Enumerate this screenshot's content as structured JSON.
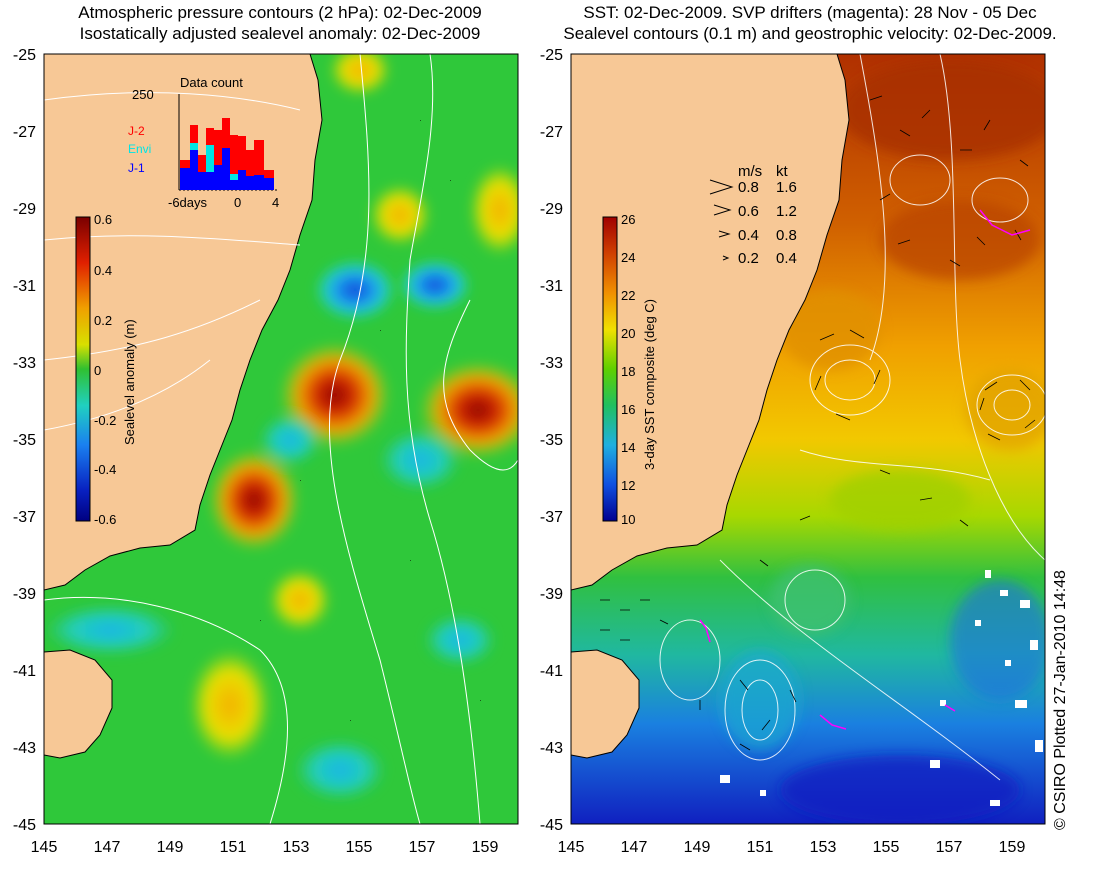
{
  "left_panel": {
    "title_line1": "Atmospheric pressure contours (2 hPa): 02-Dec-2009",
    "title_line2": "Isostatically adjusted sealevel anomaly: 02-Dec-2009",
    "y_ticks": [
      "-25",
      "-27",
      "-29",
      "-31",
      "-33",
      "-35",
      "-37",
      "-39",
      "-41",
      "-43",
      "-45"
    ],
    "x_ticks": [
      "145",
      "147",
      "149",
      "151",
      "153",
      "155",
      "157",
      "159"
    ],
    "colorbar": {
      "label": "Sealevel anomaly (m)",
      "ticks": [
        "0.6",
        "0.4",
        "0.2",
        "0",
        "-0.2",
        "-0.4",
        "-0.6"
      ],
      "range": [
        -0.6,
        0.6
      ]
    },
    "data_count_inset": {
      "title": "Data count",
      "y_max_label": "250",
      "x_ticks": [
        "-6days",
        "0",
        "4"
      ],
      "legend": [
        {
          "label": "J-2",
          "color": "#ff0000"
        },
        {
          "label": "Envi",
          "color": "#00e5e5"
        },
        {
          "label": "J-1",
          "color": "#0000ff"
        }
      ]
    }
  },
  "right_panel": {
    "title_line1": "SST: 02-Dec-2009. SVP drifters (magenta): 28 Nov - 05 Dec",
    "title_line2": "Sealevel contours (0.1 m) and geostrophic velocity: 02-Dec-2009.",
    "y_ticks": [
      "-25",
      "-27",
      "-29",
      "-31",
      "-33",
      "-35",
      "-37",
      "-39",
      "-41",
      "-43",
      "-45"
    ],
    "x_ticks": [
      "145",
      "147",
      "149",
      "151",
      "153",
      "155",
      "157",
      "159"
    ],
    "velocity_legend": {
      "header_ms": "m/s",
      "header_kt": "kt",
      "rows": [
        {
          "ms": "0.8",
          "kt": "1.6"
        },
        {
          "ms": "0.6",
          "kt": "1.2"
        },
        {
          "ms": "0.4",
          "kt": "0.8"
        },
        {
          "ms": "0.2",
          "kt": "0.4"
        }
      ]
    },
    "colorbar": {
      "label": "3-day SST composite (deg C)",
      "ticks": [
        "26",
        "24",
        "22",
        "20",
        "18",
        "16",
        "14",
        "12",
        "10"
      ],
      "range": [
        10,
        26
      ]
    }
  },
  "credit": "© CSIRO Plotted 27-Jan-2010 14:48",
  "colors": {
    "land": "#f7c896",
    "sla_bg": "#2fc83a",
    "coastline": "#000000"
  }
}
